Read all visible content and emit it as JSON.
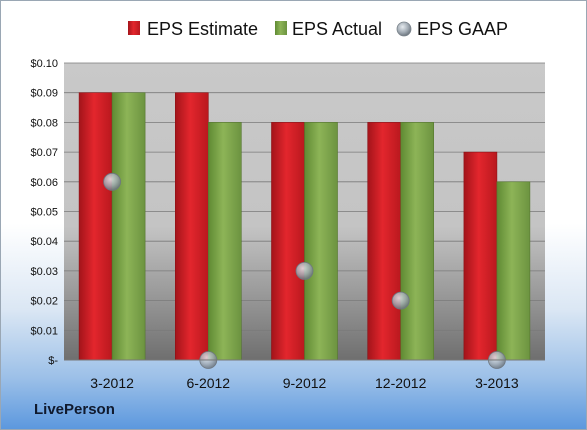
{
  "brand": "LivePerson",
  "colors": {
    "estimate": "#d11e24",
    "actual": "#7ea24a",
    "gaap": "#9aa3ad"
  },
  "chart_data": {
    "type": "bar",
    "categories": [
      "3-2012",
      "6-2012",
      "9-2012",
      "12-2012",
      "3-2013"
    ],
    "series": [
      {
        "name": "EPS Estimate",
        "kind": "bar",
        "values": [
          0.09,
          0.09,
          0.08,
          0.08,
          0.07
        ]
      },
      {
        "name": "EPS Actual",
        "kind": "bar",
        "values": [
          0.09,
          0.08,
          0.08,
          0.08,
          0.06
        ]
      },
      {
        "name": "EPS GAAP",
        "kind": "marker",
        "values": [
          0.06,
          0.0,
          0.03,
          0.02,
          0.0
        ]
      }
    ],
    "ylim": [
      0,
      0.1
    ],
    "y_ticks": [
      "$-",
      "$0.01",
      "$0.02",
      "$0.03",
      "$0.04",
      "$0.05",
      "$0.06",
      "$0.07",
      "$0.08",
      "$0.09",
      "$0.10"
    ],
    "grid": true,
    "legend_position": "top"
  }
}
